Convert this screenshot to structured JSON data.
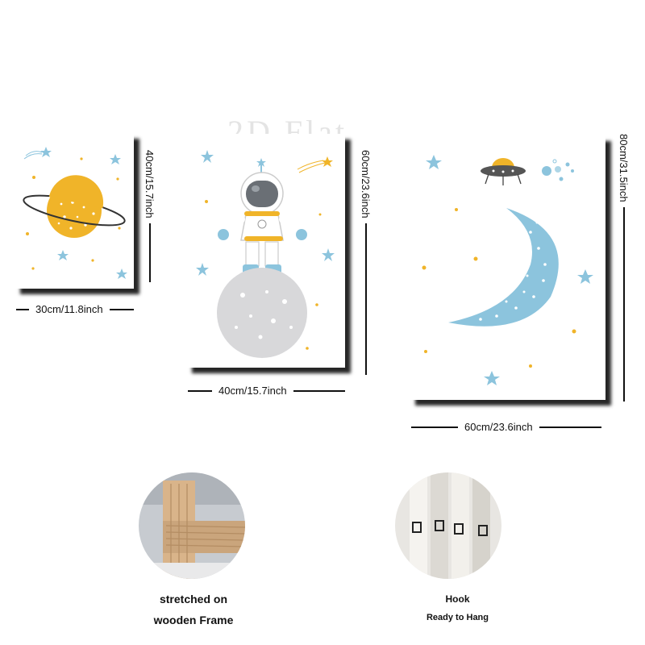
{
  "watermark": "2D Flat",
  "colors": {
    "yellow": "#F0B429",
    "blue": "#8CC4DD",
    "grey": "#D8D8DA",
    "dark": "#333333"
  },
  "panels": [
    {
      "name": "small",
      "illustration": "saturn-planet",
      "width_label": "30cm/11.8inch",
      "height_label": "40cm/15.7inch"
    },
    {
      "name": "medium",
      "illustration": "astronaut-on-moon",
      "width_label": "40cm/15.7inch",
      "height_label": "60cm/23.6inch"
    },
    {
      "name": "large",
      "illustration": "crescent-moon-ufo",
      "width_label": "60cm/23.6inch",
      "height_label": "80cm/31.5inch"
    }
  ],
  "details": {
    "frame_caption_line1": "stretched on",
    "frame_caption_line2": "wooden Frame",
    "hook_caption_line1": "Hook",
    "hook_caption_line2": "Ready to Hang"
  }
}
